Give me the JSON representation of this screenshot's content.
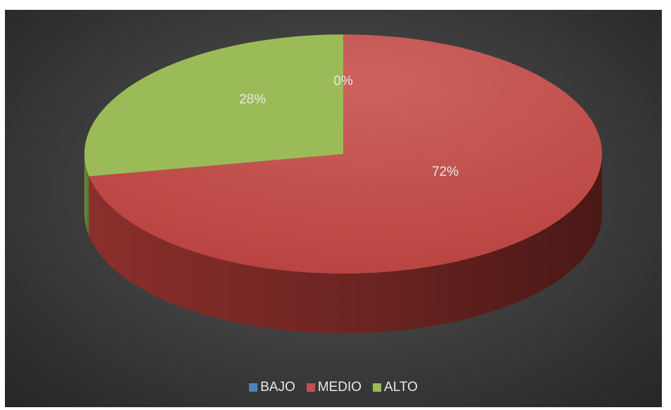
{
  "chart_data": {
    "type": "pie",
    "style": "3d",
    "categories": [
      "BAJO",
      "MEDIO",
      "ALTO"
    ],
    "values": [
      0,
      72,
      28
    ],
    "data_labels": [
      "0%",
      "72%",
      "28%"
    ],
    "colors": [
      "#4f81bd",
      "#c0504d",
      "#9bbb59"
    ],
    "legend_position": "bottom",
    "background": "dark-gradient"
  }
}
